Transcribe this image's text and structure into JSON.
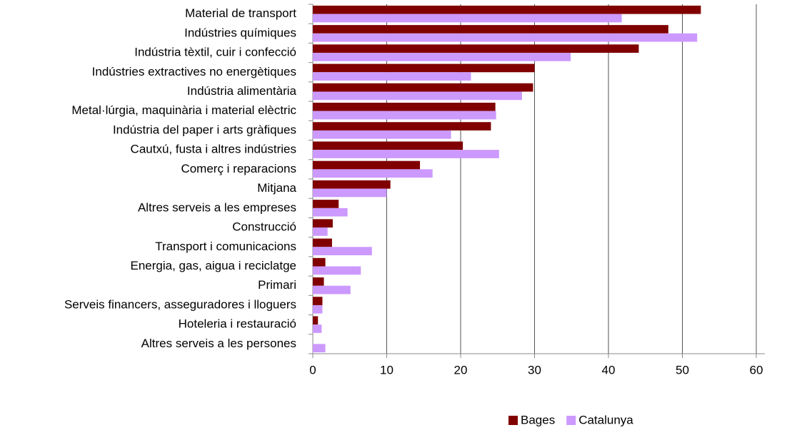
{
  "chart_data": {
    "type": "barh",
    "categories": [
      "Material de transport",
      "Indústries químiques",
      "Indústria tèxtil, cuir i confecció",
      "Indústries extractives no energètiques",
      "Indústria alimentària",
      "Metal·lúrgia, maquinària i material elèctric",
      "Indústria del paper i arts gràfiques",
      "Cautxú, fusta i altres indústries",
      "Comerç i reparacions",
      "Mitjana",
      "Altres serveis a les empreses",
      "Construcció",
      "Transport i comunicacions",
      "Energia, gas, aigua i reciclatge",
      "Primari",
      "Serveis financers, asseguradores i lloguers",
      "Hoteleria i restauració",
      "Altres serveis a les persones"
    ],
    "series": [
      {
        "name": "Bages",
        "color": "#800000",
        "values": [
          52.5,
          48.1,
          44.1,
          30.0,
          29.8,
          24.7,
          24.1,
          20.3,
          14.5,
          10.5,
          3.5,
          2.7,
          2.6,
          1.7,
          1.5,
          1.3,
          0.7,
          0
        ]
      },
      {
        "name": "Catalunya",
        "color": "#cc99ff",
        "values": [
          41.8,
          52.0,
          34.9,
          21.4,
          28.3,
          24.8,
          18.7,
          25.2,
          16.2,
          10.0,
          4.7,
          2.0,
          8.0,
          6.5,
          5.1,
          1.3,
          1.2,
          1.7
        ]
      }
    ],
    "xlim": [
      0,
      60
    ],
    "xticks": [
      0,
      10,
      20,
      30,
      40,
      50,
      60
    ],
    "grid": true,
    "legend": "bottom"
  }
}
